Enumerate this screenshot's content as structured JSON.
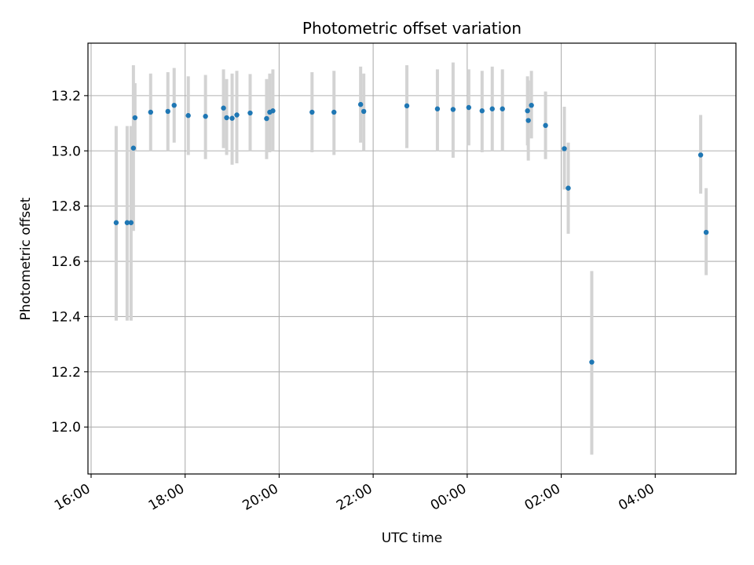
{
  "chart_data": {
    "type": "scatter",
    "title": "Photometric offset variation",
    "xlabel": "UTC time",
    "ylabel": "Photometric offset",
    "x_unit": "UTC time (HH:MM, 16:00 through 05:00)",
    "xlim": [
      "15:56",
      "05:43"
    ],
    "ylim": [
      11.83,
      13.39
    ],
    "x_ticks": [
      "16:00",
      "18:00",
      "20:00",
      "22:00",
      "00:00",
      "02:00",
      "04:00"
    ],
    "y_ticks": [
      12.0,
      12.2,
      12.4,
      12.6,
      12.8,
      13.0,
      13.2
    ],
    "grid": true,
    "colors": {
      "point": "#1f77b4",
      "errorbar": "#d3d3d3",
      "grid": "#b0b0b0",
      "frame": "#000000"
    },
    "points": [
      {
        "x": "16:32",
        "y": 12.74,
        "lo": 12.385,
        "hi": 13.09
      },
      {
        "x": "16:46",
        "y": 12.74,
        "lo": 12.385,
        "hi": 13.09
      },
      {
        "x": "16:51",
        "y": 12.74,
        "lo": 12.385,
        "hi": 13.09
      },
      {
        "x": "16:54",
        "y": 13.01,
        "lo": 12.71,
        "hi": 13.31
      },
      {
        "x": "16:56",
        "y": 13.12,
        "lo": 13.0,
        "hi": 13.245
      },
      {
        "x": "17:16",
        "y": 13.14,
        "lo": 13.0,
        "hi": 13.28
      },
      {
        "x": "17:38",
        "y": 13.143,
        "lo": 13.0,
        "hi": 13.285
      },
      {
        "x": "17:46",
        "y": 13.165,
        "lo": 13.03,
        "hi": 13.3
      },
      {
        "x": "18:04",
        "y": 13.128,
        "lo": 12.985,
        "hi": 13.27
      },
      {
        "x": "18:26",
        "y": 13.125,
        "lo": 12.97,
        "hi": 13.275
      },
      {
        "x": "18:49",
        "y": 13.155,
        "lo": 13.01,
        "hi": 13.295
      },
      {
        "x": "18:53",
        "y": 13.12,
        "lo": 12.985,
        "hi": 13.26
      },
      {
        "x": "19:00",
        "y": 13.118,
        "lo": 12.95,
        "hi": 13.28
      },
      {
        "x": "19:06",
        "y": 13.13,
        "lo": 12.955,
        "hi": 13.29
      },
      {
        "x": "19:23",
        "y": 13.137,
        "lo": 13.0,
        "hi": 13.278
      },
      {
        "x": "19:44",
        "y": 13.117,
        "lo": 12.97,
        "hi": 13.26
      },
      {
        "x": "19:48",
        "y": 13.14,
        "lo": 12.995,
        "hi": 13.28
      },
      {
        "x": "19:52",
        "y": 13.145,
        "lo": 13.0,
        "hi": 13.295
      },
      {
        "x": "20:42",
        "y": 13.14,
        "lo": 12.995,
        "hi": 13.285
      },
      {
        "x": "21:10",
        "y": 13.14,
        "lo": 12.985,
        "hi": 13.29
      },
      {
        "x": "21:44",
        "y": 13.168,
        "lo": 13.03,
        "hi": 13.305
      },
      {
        "x": "21:48",
        "y": 13.143,
        "lo": 13.0,
        "hi": 13.28
      },
      {
        "x": "22:43",
        "y": 13.163,
        "lo": 13.01,
        "hi": 13.31
      },
      {
        "x": "23:22",
        "y": 13.152,
        "lo": 13.0,
        "hi": 13.295
      },
      {
        "x": "23:42",
        "y": 13.15,
        "lo": 12.975,
        "hi": 13.32
      },
      {
        "x": "00:02",
        "y": 13.157,
        "lo": 13.02,
        "hi": 13.295
      },
      {
        "x": "00:19",
        "y": 13.145,
        "lo": 12.995,
        "hi": 13.29
      },
      {
        "x": "00:32",
        "y": 13.152,
        "lo": 13.0,
        "hi": 13.305
      },
      {
        "x": "00:45",
        "y": 13.152,
        "lo": 13.0,
        "hi": 13.295
      },
      {
        "x": "01:17",
        "y": 13.145,
        "lo": 13.02,
        "hi": 13.27
      },
      {
        "x": "01:18",
        "y": 13.11,
        "lo": 12.965,
        "hi": 13.255
      },
      {
        "x": "01:22",
        "y": 13.165,
        "lo": 13.045,
        "hi": 13.29
      },
      {
        "x": "01:40",
        "y": 13.092,
        "lo": 12.97,
        "hi": 13.215
      },
      {
        "x": "02:04",
        "y": 13.008,
        "lo": 12.86,
        "hi": 13.16
      },
      {
        "x": "02:09",
        "y": 12.865,
        "lo": 12.7,
        "hi": 13.03
      },
      {
        "x": "02:39",
        "y": 12.235,
        "lo": 11.9,
        "hi": 12.565
      },
      {
        "x": "04:58",
        "y": 12.985,
        "lo": 12.845,
        "hi": 13.13
      },
      {
        "x": "05:05",
        "y": 12.705,
        "lo": 12.55,
        "hi": 12.865
      }
    ]
  }
}
